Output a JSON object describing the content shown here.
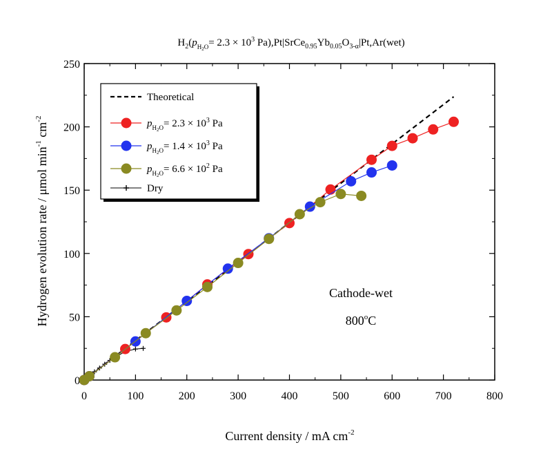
{
  "chart_data": {
    "type": "scatter",
    "title": {
      "text": "H2(pH2O= 2.3 × 10³ Pa),Pt|SrCe0.95Yb0.05O3-α|Pt,Ar(wet)",
      "main": "H",
      "s1": "2",
      "p1": "(",
      "pvar": "p",
      "psub": "H",
      "psub2": "2",
      "psub3": "O",
      "p2": "= 2.3 × 10",
      "exp": "3",
      "p3": " Pa),Pt|SrCe",
      "s2": "0.95",
      "p4": "Yb",
      "s3": "0.05",
      "p5": "O",
      "s4": "3-α",
      "p6": "|Pt,Ar(wet)"
    },
    "xlabel": {
      "text": "Current density / mA cm-2",
      "main": "Current density / mA cm",
      "sup": "-2"
    },
    "ylabel": {
      "text": "Hydrogen evolution rate / μmol min-1 cm-2",
      "main": "Hydrogen evolution rate /  μmol min",
      "sup1": "-1",
      "mid": " cm",
      "sup2": "-2"
    },
    "xlim": [
      0,
      800
    ],
    "ylim": [
      0,
      250
    ],
    "xticks": [
      "0",
      "100",
      "200",
      "300",
      "400",
      "500",
      "600",
      "700",
      "800"
    ],
    "yticks": [
      "0",
      "50",
      "100",
      "150",
      "200",
      "250"
    ],
    "grid": false,
    "legend_position": "top-left",
    "annotation": {
      "line1": "Cathode-wet",
      "line2_value": "800",
      "line2_sup": "o",
      "line2_unit": "C"
    },
    "series": [
      {
        "name": "Theoretical",
        "label": {
          "text": "Theoretical"
        },
        "style": "dashed-line",
        "color": "#000000",
        "x": [
          0,
          720
        ],
        "y": [
          0,
          223.8
        ]
      },
      {
        "name": "pH2O = 2.3 × 10³ Pa",
        "label": {
          "var": "p",
          "sub": "H",
          "sub2": "2",
          "sub3": "O",
          "val": "= 2.3 × 10",
          "exp": "3",
          "unit": " Pa"
        },
        "style": "circle-line",
        "color": "#ee2222",
        "x": [
          0,
          10,
          80,
          160,
          240,
          320,
          400,
          480,
          560,
          600,
          640,
          680,
          720
        ],
        "y": [
          0,
          3,
          24.5,
          49.5,
          75.5,
          99.5,
          124,
          150.5,
          174,
          185,
          191,
          198,
          204
        ]
      },
      {
        "name": "pH2O = 1.4 × 10³ Pa",
        "label": {
          "var": "p",
          "sub": "H",
          "sub2": "2",
          "sub3": "O",
          "val": "= 1.4 × 10",
          "exp": "3",
          "unit": " Pa"
        },
        "style": "circle-line",
        "color": "#2233ee",
        "x": [
          0,
          10,
          100,
          200,
          280,
          360,
          440,
          520,
          560,
          600
        ],
        "y": [
          0,
          3,
          30.5,
          62.5,
          88,
          112,
          137,
          157,
          164,
          169.5
        ]
      },
      {
        "name": "pH2O = 6.6 × 10² Pa",
        "label": {
          "var": "p",
          "sub": "H",
          "sub2": "2",
          "sub3": "O",
          "val": "= 6.6 × 10",
          "exp": "2",
          "unit": " Pa"
        },
        "style": "circle-line",
        "color": "#8a8a22",
        "x": [
          0,
          10,
          60,
          120,
          180,
          240,
          300,
          360,
          420,
          460,
          500,
          540
        ],
        "y": [
          0,
          3,
          18,
          37,
          55,
          73.5,
          92.5,
          111.5,
          131,
          140.5,
          147,
          145.5
        ]
      },
      {
        "name": "Dry",
        "label": {
          "text": "Dry"
        },
        "style": "plus-line",
        "color": "#000000",
        "x": [
          0,
          10,
          20,
          30,
          40,
          50,
          60,
          80,
          100,
          115
        ],
        "y": [
          0,
          3,
          6.5,
          9.5,
          12.5,
          15.5,
          18,
          22.5,
          24.5,
          25
        ]
      }
    ]
  }
}
